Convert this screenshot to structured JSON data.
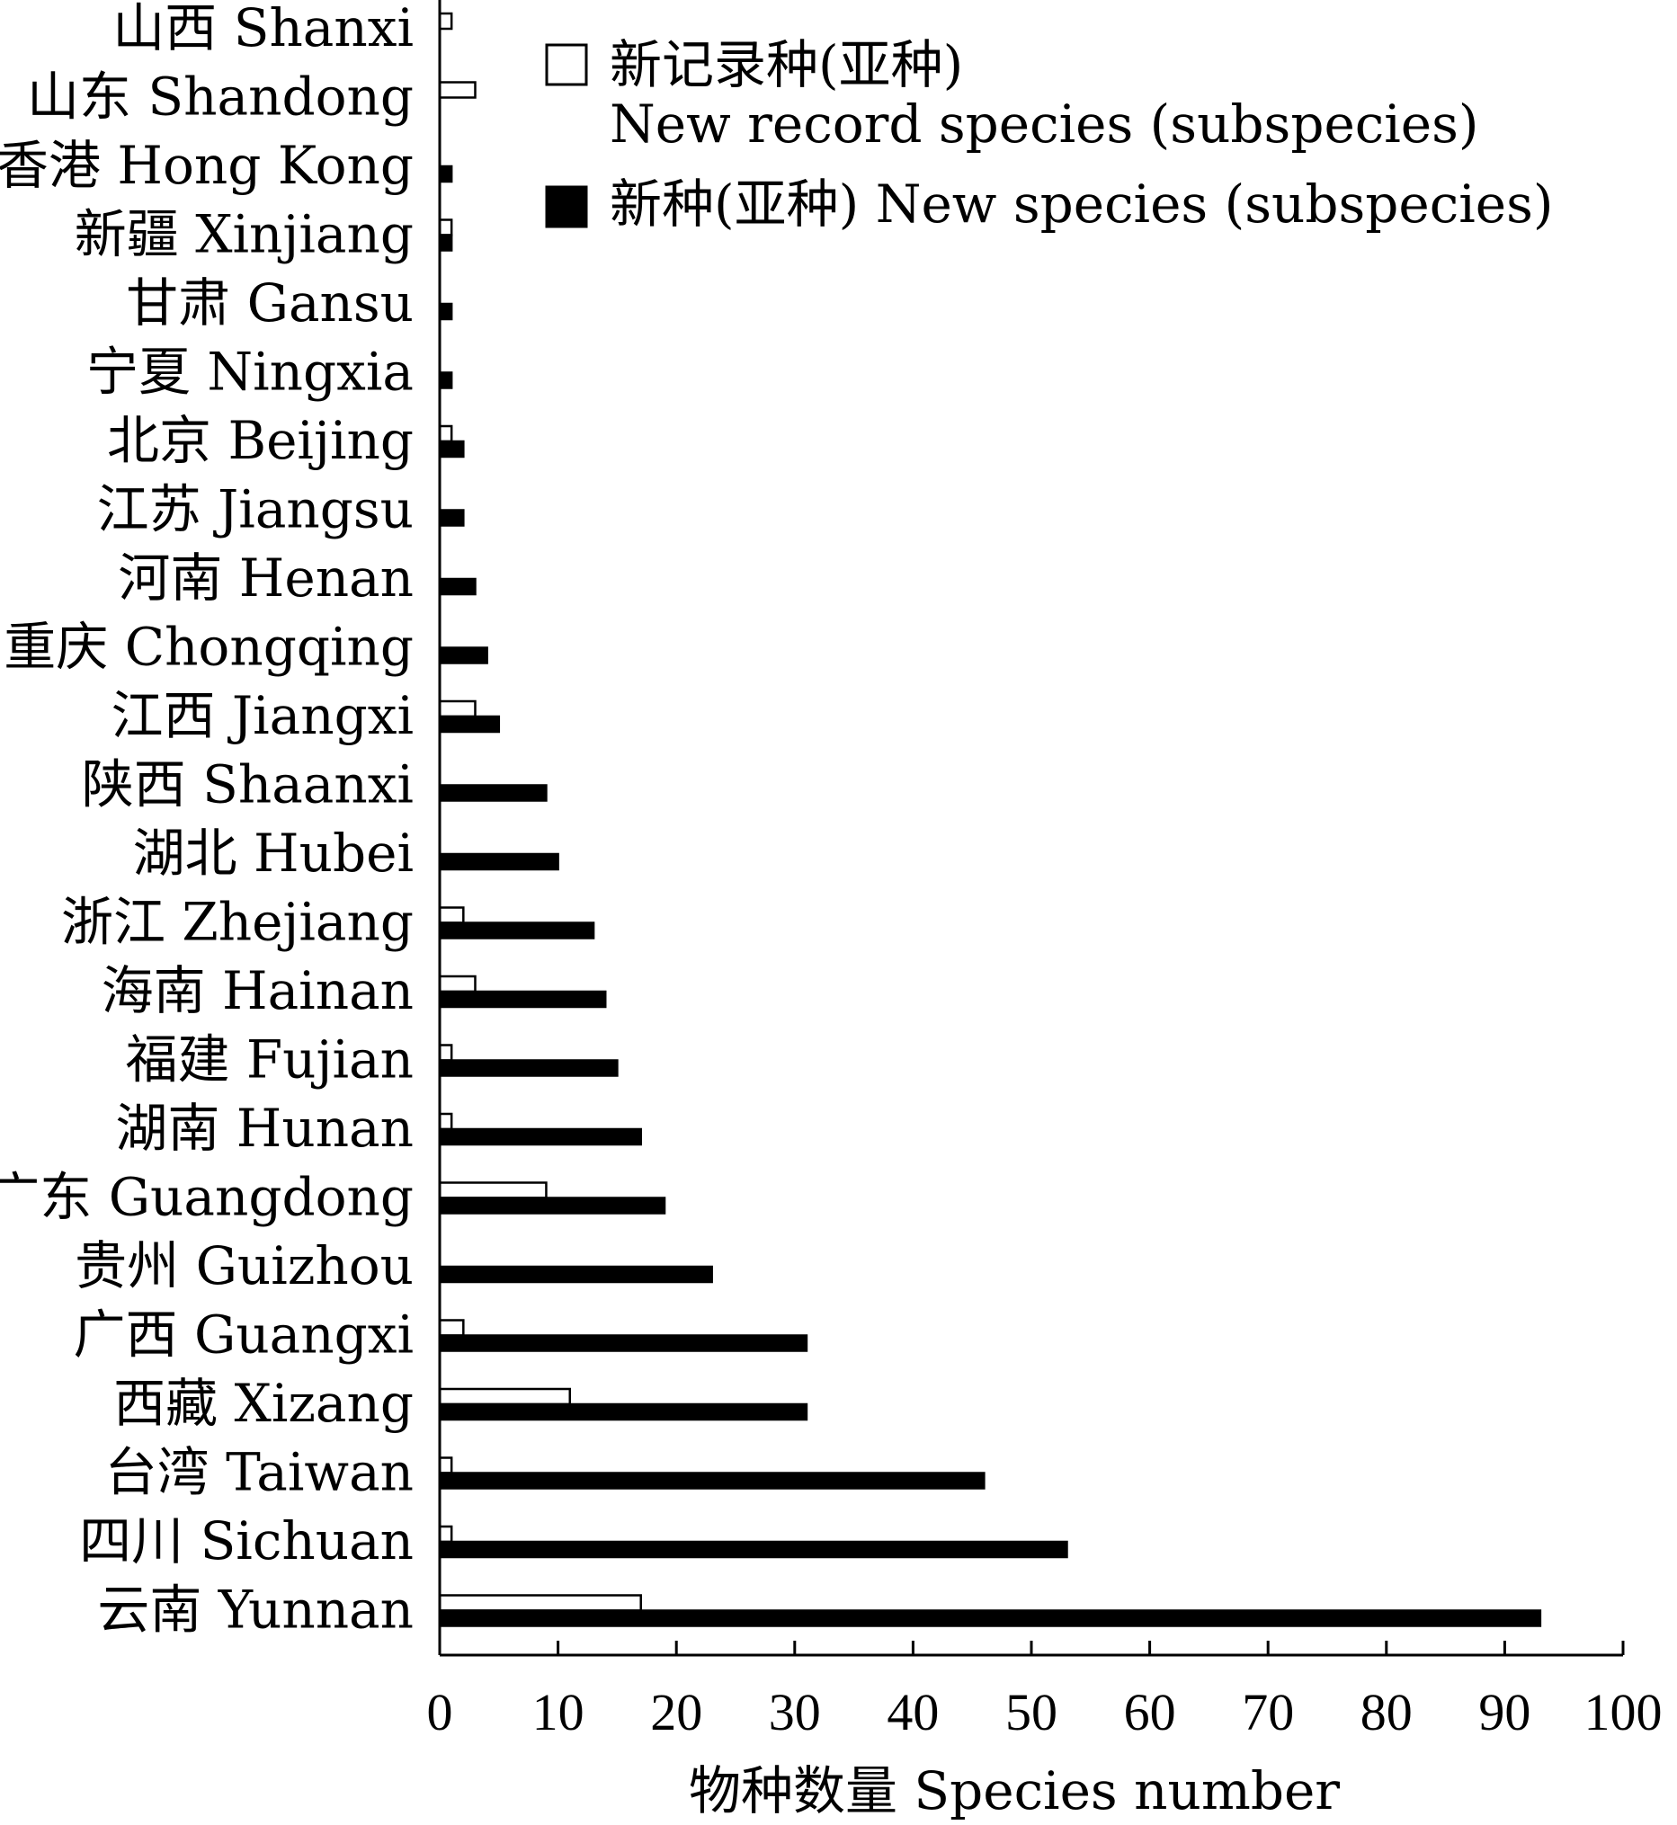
{
  "chart_data": {
    "type": "bar",
    "orientation": "horizontal",
    "categories": [
      "山西 Shanxi",
      "山东 Shandong",
      "香港 Hong Kong",
      "新疆 Xinjiang",
      "甘肃 Gansu",
      "宁夏 Ningxia",
      "北京 Beijing",
      "江苏 Jiangsu",
      "河南 Henan",
      "重庆 Chongqing",
      "江西 Jiangxi",
      "陕西 Shaanxi",
      "湖北 Hubei",
      "浙江 Zhejiang",
      "海南 Hainan",
      "福建 Fujian",
      "湖南 Hunan",
      "广东 Guangdong",
      "贵州 Guizhou",
      "广西 Guangxi",
      "西藏 Xizang",
      "台湾 Taiwan",
      "四川 Sichuan",
      "云南 Yunnan"
    ],
    "series": [
      {
        "name": "新记录种(亚种) New record species (subspecies)",
        "fill": "#ffffff",
        "values": [
          1,
          3,
          0,
          1,
          0,
          0,
          1,
          0,
          0,
          0,
          3,
          0,
          0,
          2,
          3,
          1,
          1,
          9,
          0,
          2,
          11,
          1,
          1,
          17
        ]
      },
      {
        "name": "新种(亚种) New species (subspecies)",
        "fill": "#000000",
        "values": [
          0,
          0,
          1,
          1,
          1,
          1,
          2,
          2,
          3,
          4,
          5,
          9,
          10,
          13,
          14,
          15,
          17,
          19,
          23,
          31,
          31,
          46,
          53,
          93
        ]
      }
    ],
    "xlim": [
      0,
      100
    ],
    "xticks": [
      "0",
      "10",
      "20",
      "30",
      "40",
      "50",
      "60",
      "70",
      "80",
      "90",
      "100"
    ],
    "xlabel": "物种数量 Species number",
    "ylabel": "",
    "title": "",
    "legend": {
      "position": "top-right",
      "entries": [
        {
          "lines": [
            "新记录种(亚种)",
            "New record species (subspecies)"
          ],
          "fill": "#ffffff"
        },
        {
          "lines": [
            "新种(亚种) New species (subspecies)"
          ],
          "fill": "#000000"
        }
      ]
    },
    "grid": false
  }
}
